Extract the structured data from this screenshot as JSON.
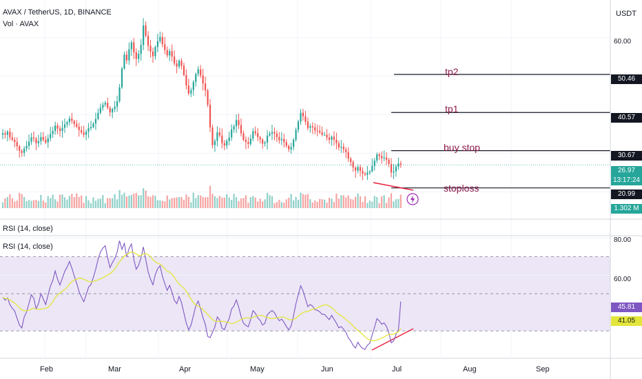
{
  "header": {
    "symbol_line": "AVAX / TetherUS, 1D, BINANCE",
    "vol_line": "Vol · AVAX",
    "currency": "USDT"
  },
  "price_axis": {
    "ticks": [
      "60.00"
    ],
    "range": [
      17,
      68
    ]
  },
  "price_labels": {
    "tp2": "50.46",
    "tp1": "40.57",
    "buy_stop": "30.67",
    "last": "26.97",
    "countdown": "13:17:24",
    "stoploss": "20.99",
    "volume": "1.302 M"
  },
  "annotations": {
    "tp2": "tp2",
    "tp1": "tp1",
    "buy_stop": "buy stop",
    "stoploss": "stoploss"
  },
  "rsi_empty_title": "RSI (14, close)",
  "rsi": {
    "title": "RSI (14, close)",
    "ticks": [
      "80.00",
      "60.00"
    ],
    "value": "45.81",
    "ma_value": "41.05",
    "upper_band": 70,
    "lower_band": 30,
    "range": [
      16,
      82
    ]
  },
  "months": [
    "Feb",
    "Mar",
    "Apr",
    "May",
    "Jun",
    "Jul",
    "Aug",
    "Sep"
  ],
  "colors": {
    "up": "#26a69a",
    "down": "#ef5350",
    "vol_up": "#8fd0c8",
    "vol_down": "#f5a3a1",
    "rsi": "#7e57c2",
    "rsi_ma": "#e3e63a",
    "rsi_band_fill": "#ece6f6",
    "trendline": "#e91e3c"
  },
  "chart_data": {
    "type": "candlestick",
    "title": "AVAX / TetherUS, 1D, BINANCE",
    "price_levels": {
      "tp2": 50.46,
      "tp1": 40.57,
      "buy_stop": 30.67,
      "last": 26.97,
      "stoploss": 20.99
    },
    "close": [
      35.2,
      34.8,
      35.6,
      34.1,
      33.5,
      32.9,
      31.8,
      30.6,
      30.1,
      31.2,
      31.9,
      33.0,
      34.1,
      33.8,
      32.6,
      33.1,
      34.2,
      33.5,
      32.8,
      33.9,
      35.0,
      35.8,
      37.2,
      36.4,
      35.8,
      36.6,
      37.5,
      38.1,
      39.0,
      38.4,
      37.6,
      36.9,
      36.0,
      35.4,
      34.8,
      35.6,
      36.5,
      36.8,
      37.7,
      38.9,
      40.5,
      41.8,
      42.6,
      43.1,
      41.8,
      40.6,
      41.5,
      42.1,
      43.5,
      47.1,
      52.0,
      55.6,
      54.1,
      57.0,
      58.8,
      56.2,
      54.5,
      55.8,
      58.1,
      63.2,
      60.5,
      57.9,
      56.4,
      55.2,
      57.6,
      59.1,
      60.2,
      58.3,
      56.8,
      55.4,
      56.5,
      55.1,
      53.3,
      52.5,
      54.0,
      52.7,
      50.3,
      47.6,
      45.5,
      46.4,
      48.5,
      50.6,
      51.8,
      50.2,
      48.1,
      46.3,
      42.6,
      36.7,
      32.1,
      33.2,
      35.4,
      34.6,
      32.6,
      32.0,
      33.2,
      34.1,
      36.2,
      37.0,
      38.6,
      37.3,
      35.2,
      33.5,
      32.9,
      32.4,
      33.8,
      35.7,
      35.2,
      34.2,
      33.6,
      32.5,
      32.8,
      34.6,
      35.1,
      35.5,
      35.1,
      34.2,
      33.4,
      33.7,
      32.9,
      31.9,
      31.0,
      31.6,
      33.5,
      36.1,
      38.2,
      40.5,
      39.6,
      38.2,
      36.6,
      37.0,
      36.7,
      35.9,
      35.8,
      35.4,
      34.8,
      34.8,
      34.1,
      33.5,
      34.3,
      33.5,
      32.6,
      31.5,
      31.7,
      31.0,
      30.3,
      28.6,
      27.7,
      26.3,
      25.5,
      26.4,
      25.4,
      24.7,
      24.4,
      25.0,
      25.3,
      26.7,
      28.1,
      29.7,
      29.3,
      28.7,
      28.9,
      28.3,
      27.2,
      25.0,
      25.3,
      26.5,
      27.3,
      26.97
    ],
    "rsi": [
      48.2,
      46.5,
      47.9,
      44.1,
      42.3,
      40.7,
      36.8,
      33.1,
      31.6,
      37.5,
      40.2,
      44.9,
      49.5,
      47.6,
      41.9,
      44.7,
      50.1,
      47.2,
      44.2,
      49.2,
      54.1,
      57.2,
      62.3,
      57.8,
      54.7,
      58.3,
      62.1,
      64.3,
      67.4,
      63.8,
      59.6,
      55.7,
      51.3,
      48.2,
      45.7,
      49.5,
      53.6,
      55.0,
      58.8,
      63.1,
      68.6,
      72.5,
      74.6,
      75.8,
      69.4,
      64.0,
      66.8,
      68.9,
      72.4,
      78.5,
      73.9,
      77.1,
      69.8,
      74.4,
      76.8,
      68.5,
      63.2,
      65.3,
      69.4,
      75.2,
      68.4,
      61.7,
      57.9,
      54.8,
      60.2,
      63.5,
      65.1,
      59.4,
      55.3,
      51.8,
      54.5,
      50.9,
      46.4,
      44.7,
      48.5,
      45.2,
      39.7,
      34.2,
      30.6,
      33.1,
      38.3,
      43.5,
      46.1,
      41.9,
      37.2,
      33.5,
      27.1,
      26.4,
      29.3,
      32.1,
      37.5,
      35.9,
      31.5,
      30.6,
      34.1,
      36.5,
      41.8,
      43.5,
      46.7,
      42.8,
      37.7,
      34.1,
      33.0,
      32.2,
      36.1,
      40.9,
      39.5,
      37.0,
      35.7,
      33.2,
      34.1,
      38.8,
      40.0,
      41.0,
      39.8,
      37.4,
      35.5,
      36.4,
      34.6,
      32.4,
      30.6,
      32.8,
      38.1,
      44.6,
      49.5,
      54.3,
      51.5,
      47.3,
      43.1,
      44.2,
      43.4,
      41.4,
      41.1,
      40.3,
      38.9,
      38.9,
      37.4,
      36.1,
      38.4,
      36.3,
      34.2,
      31.7,
      32.4,
      30.9,
      29.3,
      26.2,
      24.6,
      22.2,
      20.8,
      23.9,
      21.9,
      20.6,
      20.1,
      22.3,
      23.4,
      27.8,
      32.1,
      36.6,
      35.4,
      33.6,
      34.3,
      32.4,
      29.1,
      23.6,
      24.6,
      28.1,
      30.5,
      45.81
    ],
    "rsi_range": [
      16,
      82
    ],
    "rsi_bands": [
      30,
      50,
      70
    ],
    "x_labels": [
      "Feb",
      "Mar",
      "Apr",
      "May",
      "Jun",
      "Jul",
      "Aug",
      "Sep"
    ]
  }
}
